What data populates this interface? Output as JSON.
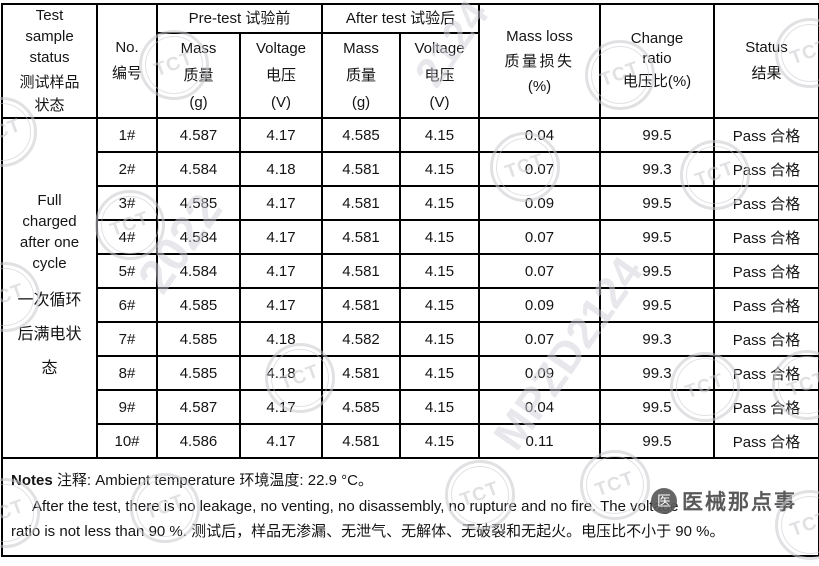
{
  "table": {
    "columns": {
      "sample_status": {
        "en": "Test sample status",
        "zh": "测试样品状态"
      },
      "no": {
        "en": "No.",
        "zh": "编号"
      },
      "pre_test": {
        "label": "Pre-test 试验前"
      },
      "after_test": {
        "label": "After test 试验后"
      },
      "mass": {
        "en": "Mass",
        "zh": "质量",
        "unit": "(g)"
      },
      "voltage": {
        "en": "Voltage",
        "zh": "电压",
        "unit": "(V)"
      },
      "mass_loss": {
        "en": "Mass loss",
        "zh": "质量损失",
        "unit": "(%)"
      },
      "change_ratio": {
        "en": "Change ratio",
        "zh": "电压比(%)"
      },
      "status": {
        "en": "Status",
        "zh": "结果"
      }
    },
    "sample_status_value": {
      "en": "Full charged after one cycle",
      "zh": "一次循环后满电状态"
    },
    "rows": [
      {
        "no": "1#",
        "pre_mass": "4.587",
        "pre_voltage": "4.17",
        "after_mass": "4.585",
        "after_voltage": "4.15",
        "mass_loss": "0.04",
        "change_ratio": "99.5",
        "status": "Pass 合格"
      },
      {
        "no": "2#",
        "pre_mass": "4.584",
        "pre_voltage": "4.18",
        "after_mass": "4.581",
        "after_voltage": "4.15",
        "mass_loss": "0.07",
        "change_ratio": "99.3",
        "status": "Pass 合格"
      },
      {
        "no": "3#",
        "pre_mass": "4.585",
        "pre_voltage": "4.17",
        "after_mass": "4.581",
        "after_voltage": "4.15",
        "mass_loss": "0.09",
        "change_ratio": "99.5",
        "status": "Pass 合格"
      },
      {
        "no": "4#",
        "pre_mass": "4.584",
        "pre_voltage": "4.17",
        "after_mass": "4.581",
        "after_voltage": "4.15",
        "mass_loss": "0.07",
        "change_ratio": "99.5",
        "status": "Pass 合格"
      },
      {
        "no": "5#",
        "pre_mass": "4.584",
        "pre_voltage": "4.17",
        "after_mass": "4.581",
        "after_voltage": "4.15",
        "mass_loss": "0.07",
        "change_ratio": "99.5",
        "status": "Pass 合格"
      },
      {
        "no": "6#",
        "pre_mass": "4.585",
        "pre_voltage": "4.17",
        "after_mass": "4.581",
        "after_voltage": "4.15",
        "mass_loss": "0.09",
        "change_ratio": "99.5",
        "status": "Pass 合格"
      },
      {
        "no": "7#",
        "pre_mass": "4.585",
        "pre_voltage": "4.18",
        "after_mass": "4.582",
        "after_voltage": "4.15",
        "mass_loss": "0.07",
        "change_ratio": "99.3",
        "status": "Pass 合格"
      },
      {
        "no": "8#",
        "pre_mass": "4.585",
        "pre_voltage": "4.18",
        "after_mass": "4.581",
        "after_voltage": "4.15",
        "mass_loss": "0.09",
        "change_ratio": "99.3",
        "status": "Pass 合格"
      },
      {
        "no": "9#",
        "pre_mass": "4.587",
        "pre_voltage": "4.17",
        "after_mass": "4.585",
        "after_voltage": "4.15",
        "mass_loss": "0.04",
        "change_ratio": "99.5",
        "status": "Pass 合格"
      },
      {
        "no": "10#",
        "pre_mass": "4.586",
        "pre_voltage": "4.17",
        "after_mass": "4.581",
        "after_voltage": "4.15",
        "mass_loss": "0.11",
        "change_ratio": "99.5",
        "status": "Pass 合格"
      }
    ]
  },
  "notes": {
    "label_en": "Notes",
    "line1_rest": "注释: Ambient temperature  环境温度: 22.9 °C。",
    "line2": "After the test, there is no leakage, no venting, no disassembly, no rupture and no fire. The voltage",
    "line3": "ratio is not less than 90 %.  测试后，样品无渗漏、无泄气、无解体、无破裂和无起火。电压比不小于 90 %。"
  },
  "watermarks": {
    "stamp_text": "TCT",
    "diagonal_texts": [
      "2022",
      "MPZD2124",
      "2124"
    ],
    "brand": "医械那点事"
  }
}
